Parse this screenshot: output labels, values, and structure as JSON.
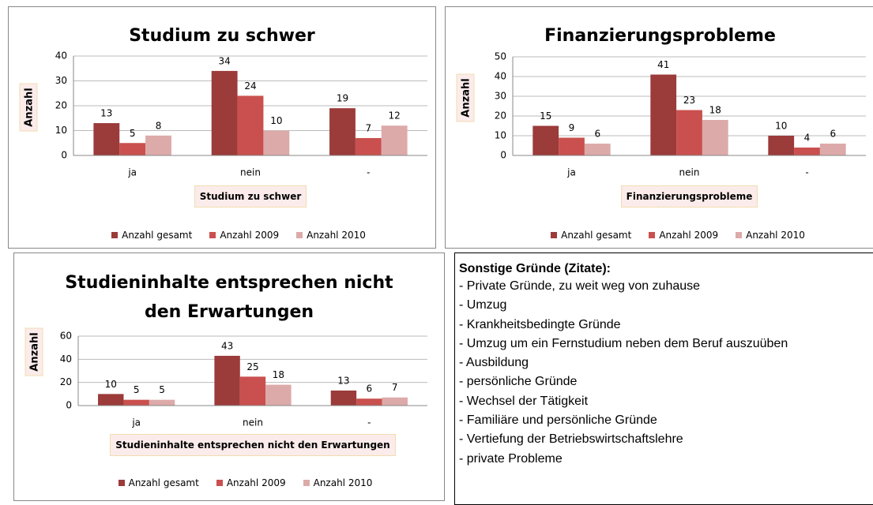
{
  "chart_data": [
    {
      "type": "bar",
      "title": "Studium zu schwer",
      "x_label": "Studium zu schwer",
      "y_label": "Anzahl",
      "categories": [
        "ja",
        "nein",
        "-"
      ],
      "series": [
        {
          "name": "Anzahl gesamt",
          "color": "#9b3b3a",
          "values": [
            13,
            34,
            19
          ]
        },
        {
          "name": "Anzahl 2009",
          "color": "#c9504e",
          "values": [
            5,
            24,
            7
          ]
        },
        {
          "name": "Anzahl 2010",
          "color": "#dcaaa9",
          "values": [
            8,
            10,
            12
          ]
        }
      ],
      "ylim": [
        0,
        40
      ],
      "yticks": [
        0,
        10,
        20,
        30,
        40
      ],
      "grid": true
    },
    {
      "type": "bar",
      "title": "Finanzierungsprobleme",
      "x_label": "Finanzierungsprobleme",
      "y_label": "Anzahl",
      "categories": [
        "ja",
        "nein",
        "-"
      ],
      "series": [
        {
          "name": "Anzahl gesamt",
          "color": "#9b3b3a",
          "values": [
            15,
            41,
            10
          ]
        },
        {
          "name": "Anzahl 2009",
          "color": "#c9504e",
          "values": [
            9,
            23,
            4
          ]
        },
        {
          "name": "Anzahl 2010",
          "color": "#dcaaa9",
          "values": [
            6,
            18,
            6
          ]
        }
      ],
      "ylim": [
        0,
        50
      ],
      "yticks": [
        0,
        10,
        20,
        30,
        40,
        50
      ],
      "grid": true
    },
    {
      "type": "bar",
      "title": "Studieninhalte entsprechen nicht den Erwartungen",
      "x_label": "Studieninhalte entsprechen nicht den Erwartungen",
      "y_label": "Anzahl",
      "categories": [
        "ja",
        "nein",
        "-"
      ],
      "series": [
        {
          "name": "Anzahl gesamt",
          "color": "#9b3b3a",
          "values": [
            10,
            43,
            13
          ]
        },
        {
          "name": "Anzahl 2009",
          "color": "#c9504e",
          "values": [
            5,
            25,
            6
          ]
        },
        {
          "name": "Anzahl 2010",
          "color": "#dcaaa9",
          "values": [
            5,
            18,
            7
          ]
        }
      ],
      "ylim": [
        0,
        60
      ],
      "yticks": [
        0,
        20,
        40,
        60
      ],
      "grid": true
    }
  ],
  "notes": {
    "title": "Sonstige Gründe (Zitate):",
    "items": [
      "- Private Gründe, zu weit weg von zuhause",
      "- Umzug",
      "- Krankheitsbedingte Gründe",
      "- Umzug um ein Fernstudium neben dem Beruf auszuüben",
      "- Ausbildung",
      "- persönliche Gründe",
      "- Wechsel der Tätigkeit",
      "- Familiäre und persönliche Gründe",
      "- Vertiefung der Betriebswirtschaftslehre",
      "- private Probleme"
    ]
  }
}
